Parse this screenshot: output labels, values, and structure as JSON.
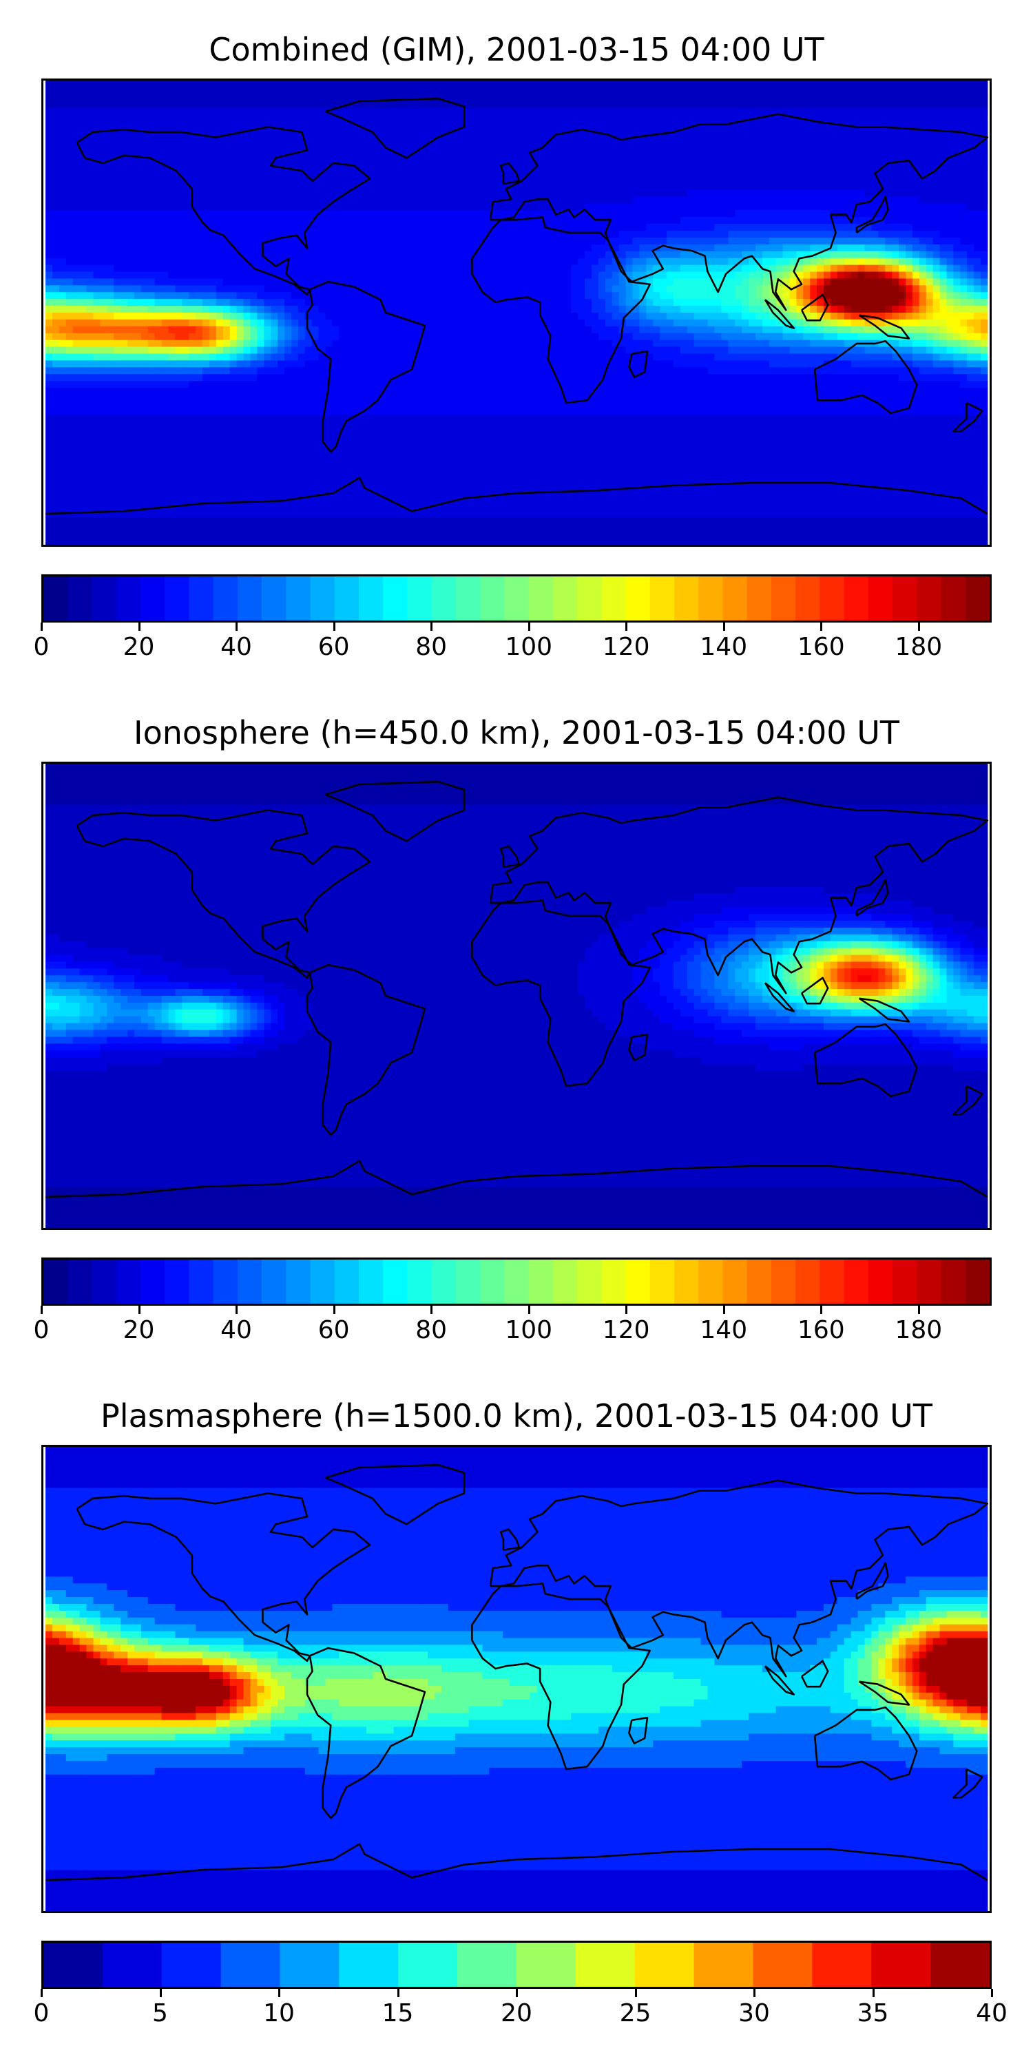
{
  "chart_data": [
    {
      "type": "heatmap",
      "title": "Combined (GIM), 2001-03-15 04:00 UT",
      "colormap": "jet",
      "colorbar": {
        "min": 0,
        "max": 195,
        "ticks": [
          0,
          20,
          40,
          60,
          80,
          100,
          120,
          140,
          160,
          180
        ],
        "levels": 39
      },
      "blobs": [
        {
          "lon": 135,
          "lat": 8,
          "value": 185,
          "sigma_lon": 18,
          "sigma_lat": 9
        },
        {
          "lon": 100,
          "lat": 8,
          "value": 60,
          "sigma_lon": 28,
          "sigma_lat": 14
        },
        {
          "lon": 55,
          "lat": 10,
          "value": 35,
          "sigma_lon": 15,
          "sigma_lat": 10
        },
        {
          "lon": -175,
          "lat": -5,
          "value": 85,
          "sigma_lon": 25,
          "sigma_lat": 9
        },
        {
          "lon": -120,
          "lat": -8,
          "value": 95,
          "sigma_lon": 18,
          "sigma_lat": 7
        },
        {
          "lon": -150,
          "lat": -8,
          "value": 55,
          "sigma_lon": 30,
          "sigma_lat": 8
        }
      ],
      "base_value": 22
    },
    {
      "type": "heatmap",
      "title": "Ionosphere  (h=450.0 km), 2001-03-15 04:00 UT",
      "colormap": "jet",
      "colorbar": {
        "min": 0,
        "max": 195,
        "ticks": [
          0,
          20,
          40,
          60,
          80,
          100,
          120,
          140,
          160,
          180
        ],
        "levels": 39
      },
      "blobs": [
        {
          "lon": 135,
          "lat": 8,
          "value": 135,
          "sigma_lon": 18,
          "sigma_lat": 9
        },
        {
          "lon": 100,
          "lat": 8,
          "value": 45,
          "sigma_lon": 28,
          "sigma_lat": 14
        },
        {
          "lon": -175,
          "lat": -5,
          "value": 55,
          "sigma_lon": 22,
          "sigma_lat": 9
        },
        {
          "lon": -120,
          "lat": -8,
          "value": 65,
          "sigma_lon": 15,
          "sigma_lat": 6
        }
      ],
      "base_value": 14
    },
    {
      "type": "heatmap",
      "title": "Plasmasphere (h=1500.0 km), 2001-03-15 04:00 UT",
      "colormap": "jet",
      "colorbar": {
        "min": 0,
        "max": 40,
        "ticks": [
          0,
          5,
          10,
          15,
          20,
          25,
          30,
          35,
          40
        ],
        "levels": 16
      },
      "blobs": [
        {
          "lon": -165,
          "lat": -5,
          "value": 30,
          "sigma_lon": 30,
          "sigma_lat": 12
        },
        {
          "lon": -120,
          "lat": -5,
          "value": 24,
          "sigma_lon": 18,
          "sigma_lat": 10
        },
        {
          "lon": 170,
          "lat": 10,
          "value": 28,
          "sigma_lon": 22,
          "sigma_lat": 12
        },
        {
          "lon": 20,
          "lat": -5,
          "value": 10,
          "sigma_lon": 80,
          "sigma_lat": 14
        },
        {
          "lon": -60,
          "lat": -5,
          "value": 8,
          "sigma_lon": 30,
          "sigma_lat": 14
        }
      ],
      "base_value": 7
    }
  ]
}
